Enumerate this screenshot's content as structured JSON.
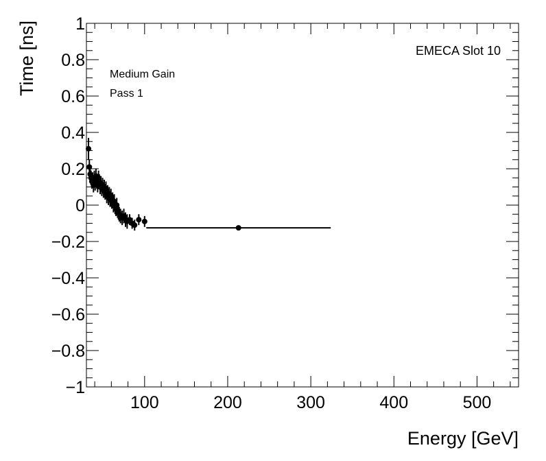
{
  "chart_data": {
    "type": "scatter",
    "xlabel": "Energy [GeV]",
    "ylabel": "Time [ns]",
    "xlim": [
      30,
      550
    ],
    "ylim": [
      -1,
      1
    ],
    "x_ticks": [
      100,
      200,
      300,
      400,
      500
    ],
    "x_tick_labels": [
      "100",
      "200",
      "300",
      "400",
      "500"
    ],
    "y_ticks": [
      -1,
      -0.8,
      -0.6,
      -0.4,
      -0.2,
      0,
      0.2,
      0.4,
      0.6,
      0.8,
      1
    ],
    "y_tick_labels": [
      "−1",
      "−0.8",
      "−0.6",
      "−0.4",
      "−0.2",
      "0",
      "0.2",
      "0.4",
      "0.6",
      "0.8",
      "1"
    ],
    "annotations": {
      "label_right": "EMECA Slot 10",
      "label_gain": "Medium Gain",
      "label_pass": "Pass 1"
    },
    "grid": false,
    "legend": "none",
    "series": [
      {
        "marker_color": "#000000",
        "points": [
          {
            "x": 32.5,
            "y": 0.31,
            "xerr": 0.5,
            "yerr": 0.06
          },
          {
            "x": 33.5,
            "y": 0.21,
            "xerr": 0.5,
            "yerr": 0.04
          },
          {
            "x": 34.5,
            "y": 0.17,
            "xerr": 0.5,
            "yerr": 0.04
          },
          {
            "x": 35.5,
            "y": 0.15,
            "xerr": 0.5,
            "yerr": 0.04
          },
          {
            "x": 36.5,
            "y": 0.13,
            "xerr": 0.5,
            "yerr": 0.04
          },
          {
            "x": 37.5,
            "y": 0.14,
            "xerr": 0.5,
            "yerr": 0.04
          },
          {
            "x": 38.5,
            "y": 0.11,
            "xerr": 0.5,
            "yerr": 0.04
          },
          {
            "x": 39.5,
            "y": 0.15,
            "xerr": 0.5,
            "yerr": 0.04
          },
          {
            "x": 40.5,
            "y": 0.12,
            "xerr": 0.5,
            "yerr": 0.04
          },
          {
            "x": 41.5,
            "y": 0.16,
            "xerr": 0.5,
            "yerr": 0.04
          },
          {
            "x": 42.5,
            "y": 0.13,
            "xerr": 0.5,
            "yerr": 0.04
          },
          {
            "x": 43.5,
            "y": 0.11,
            "xerr": 0.5,
            "yerr": 0.04
          },
          {
            "x": 44.5,
            "y": 0.15,
            "xerr": 0.5,
            "yerr": 0.04
          },
          {
            "x": 45.5,
            "y": 0.13,
            "xerr": 0.5,
            "yerr": 0.04
          },
          {
            "x": 46.5,
            "y": 0.1,
            "xerr": 0.5,
            "yerr": 0.04
          },
          {
            "x": 47.5,
            "y": 0.12,
            "xerr": 0.5,
            "yerr": 0.04
          },
          {
            "x": 48.5,
            "y": 0.09,
            "xerr": 0.5,
            "yerr": 0.04
          },
          {
            "x": 49.5,
            "y": 0.11,
            "xerr": 0.5,
            "yerr": 0.04
          },
          {
            "x": 50.5,
            "y": 0.08,
            "xerr": 0.5,
            "yerr": 0.04
          },
          {
            "x": 51.5,
            "y": 0.1,
            "xerr": 0.5,
            "yerr": 0.04
          },
          {
            "x": 52.5,
            "y": 0.07,
            "xerr": 0.5,
            "yerr": 0.04
          },
          {
            "x": 53.5,
            "y": 0.09,
            "xerr": 0.5,
            "yerr": 0.04
          },
          {
            "x": 54.5,
            "y": 0.05,
            "xerr": 0.5,
            "yerr": 0.04
          },
          {
            "x": 55.5,
            "y": 0.07,
            "xerr": 0.5,
            "yerr": 0.04
          },
          {
            "x": 56.5,
            "y": 0.04,
            "xerr": 0.5,
            "yerr": 0.04
          },
          {
            "x": 57.5,
            "y": 0.06,
            "xerr": 0.5,
            "yerr": 0.04
          },
          {
            "x": 58.5,
            "y": 0.03,
            "xerr": 0.5,
            "yerr": 0.04
          },
          {
            "x": 59.5,
            "y": 0.05,
            "xerr": 0.5,
            "yerr": 0.04
          },
          {
            "x": 60.5,
            "y": 0.02,
            "xerr": 0.5,
            "yerr": 0.04
          },
          {
            "x": 61.5,
            "y": 0.03,
            "xerr": 0.5,
            "yerr": 0.04
          },
          {
            "x": 62.5,
            "y": 0.0,
            "xerr": 0.5,
            "yerr": 0.04
          },
          {
            "x": 63.5,
            "y": 0.02,
            "xerr": 0.5,
            "yerr": 0.04
          },
          {
            "x": 64.5,
            "y": -0.01,
            "xerr": 0.5,
            "yerr": 0.04
          },
          {
            "x": 65.5,
            "y": -0.02,
            "xerr": 0.5,
            "yerr": 0.04
          },
          {
            "x": 66.5,
            "y": 0.0,
            "xerr": 0.5,
            "yerr": 0.04
          },
          {
            "x": 67.5,
            "y": -0.03,
            "xerr": 0.5,
            "yerr": 0.04
          },
          {
            "x": 68.5,
            "y": -0.04,
            "xerr": 0.5,
            "yerr": 0.04
          },
          {
            "x": 69.5,
            "y": -0.05,
            "xerr": 0.5,
            "yerr": 0.04
          },
          {
            "x": 71.0,
            "y": -0.06,
            "xerr": 1.0,
            "yerr": 0.04
          },
          {
            "x": 73.0,
            "y": -0.07,
            "xerr": 1.0,
            "yerr": 0.04
          },
          {
            "x": 75.0,
            "y": -0.06,
            "xerr": 1.0,
            "yerr": 0.04
          },
          {
            "x": 77.0,
            "y": -0.08,
            "xerr": 1.0,
            "yerr": 0.04
          },
          {
            "x": 79.0,
            "y": -0.09,
            "xerr": 1.0,
            "yerr": 0.04
          },
          {
            "x": 82.0,
            "y": -0.08,
            "xerr": 2.0,
            "yerr": 0.03
          },
          {
            "x": 85.0,
            "y": -0.1,
            "xerr": 1.5,
            "yerr": 0.03
          },
          {
            "x": 88.0,
            "y": -0.11,
            "xerr": 1.5,
            "yerr": 0.03
          },
          {
            "x": 93.0,
            "y": -0.08,
            "xerr": 2.5,
            "yerr": 0.03
          },
          {
            "x": 100.0,
            "y": -0.09,
            "xerr": 3.0,
            "yerr": 0.03
          },
          {
            "x": 213.0,
            "y": -0.125,
            "xerr": 111.0,
            "yerr": 0.01
          }
        ]
      }
    ]
  }
}
